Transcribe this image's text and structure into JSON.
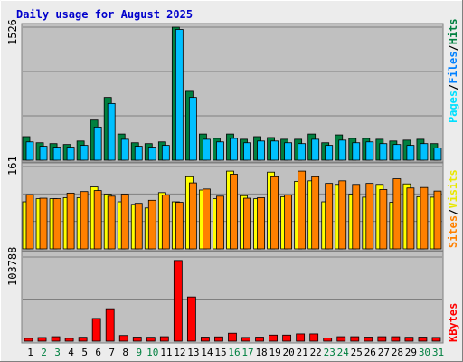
{
  "title": "Daily usage for August 2025",
  "colors": {
    "frame_bg": "#ececec",
    "plot_bg": "#c0c0c0",
    "grid": "#808080",
    "title": "#0000cc",
    "hits": "#008040",
    "files": "#00c0ff",
    "pages": "#00e0ff",
    "visits": "#ffff00",
    "sites": "#ff8000",
    "kbytes": "#ff0000",
    "weekday_label": "#000000",
    "weekend_label": "#008040"
  },
  "chart_data": [
    {
      "type": "bar",
      "name": "hits-files-pages",
      "y_max_label": "1526",
      "ylim": [
        0,
        1526
      ],
      "legend": {
        "pages": "Pages",
        "files": "Files",
        "hits": "Hits",
        "sep": "/"
      },
      "series": [
        {
          "name": "Hits",
          "values": [
            270,
            200,
            190,
            180,
            220,
            460,
            720,
            300,
            200,
            190,
            210,
            1526,
            790,
            300,
            250,
            300,
            240,
            270,
            260,
            240,
            240,
            300,
            200,
            290,
            250,
            250,
            240,
            220,
            230,
            240,
            190
          ]
        },
        {
          "name": "Files",
          "values": [
            210,
            160,
            150,
            150,
            170,
            380,
            650,
            240,
            160,
            150,
            170,
            1500,
            720,
            240,
            210,
            250,
            200,
            220,
            220,
            200,
            190,
            240,
            170,
            230,
            200,
            210,
            190,
            180,
            170,
            190,
            140
          ]
        },
        {
          "name": "Pages",
          "values": [
            0,
            0,
            0,
            0,
            0,
            0,
            0,
            0,
            0,
            0,
            0,
            0,
            0,
            0,
            0,
            0,
            0,
            0,
            0,
            0,
            0,
            0,
            0,
            0,
            0,
            0,
            0,
            0,
            0,
            0,
            0
          ]
        }
      ]
    },
    {
      "type": "bar",
      "name": "visits-sites",
      "y_max_label": "161",
      "ylim": [
        0,
        161
      ],
      "legend": {
        "sites": "Sites",
        "visits": "Visits",
        "sep": "/"
      },
      "series": [
        {
          "name": "Visits",
          "values": [
            92,
            98,
            98,
            100,
            100,
            121,
            107,
            92,
            87,
            80,
            110,
            92,
            141,
            115,
            98,
            152,
            104,
            98,
            150,
            102,
            132,
            133,
            92,
            126,
            107,
            101,
            126,
            91,
            127,
            102,
            101
          ]
        },
        {
          "name": "Sites",
          "values": [
            106,
            99,
            98,
            109,
            112,
            114,
            103,
            107,
            89,
            95,
            105,
            91,
            129,
            117,
            103,
            146,
            99,
            100,
            141,
            105,
            152,
            141,
            128,
            133,
            126,
            128,
            116,
            137,
            119,
            120,
            113
          ]
        }
      ]
    },
    {
      "type": "bar",
      "name": "kbytes",
      "y_max_label": "103788",
      "ylim": [
        0,
        103788
      ],
      "legend": {
        "kbytes": "KBytes"
      },
      "series": [
        {
          "name": "KBytes",
          "values": [
            3500,
            4500,
            5500,
            3500,
            4800,
            28000,
            40000,
            7000,
            5000,
            4800,
            5500,
            99500,
            54500,
            5000,
            5300,
            9800,
            4600,
            5000,
            7500,
            7500,
            9000,
            9000,
            3800,
            5500,
            5500,
            5000,
            5500,
            5500,
            4800,
            5000,
            4600
          ]
        }
      ]
    },
    {
      "type": "table",
      "name": "day-axis",
      "categories": [
        "1",
        "2",
        "3",
        "4",
        "5",
        "6",
        "7",
        "8",
        "9",
        "10",
        "11",
        "12",
        "13",
        "14",
        "15",
        "16",
        "17",
        "18",
        "19",
        "20",
        "21",
        "22",
        "23",
        "24",
        "25",
        "26",
        "27",
        "28",
        "29",
        "30",
        "31"
      ],
      "weekend": [
        false,
        true,
        true,
        false,
        false,
        false,
        false,
        false,
        true,
        true,
        false,
        false,
        false,
        false,
        false,
        true,
        true,
        false,
        false,
        false,
        false,
        false,
        true,
        true,
        false,
        false,
        false,
        false,
        false,
        true,
        true
      ]
    }
  ]
}
